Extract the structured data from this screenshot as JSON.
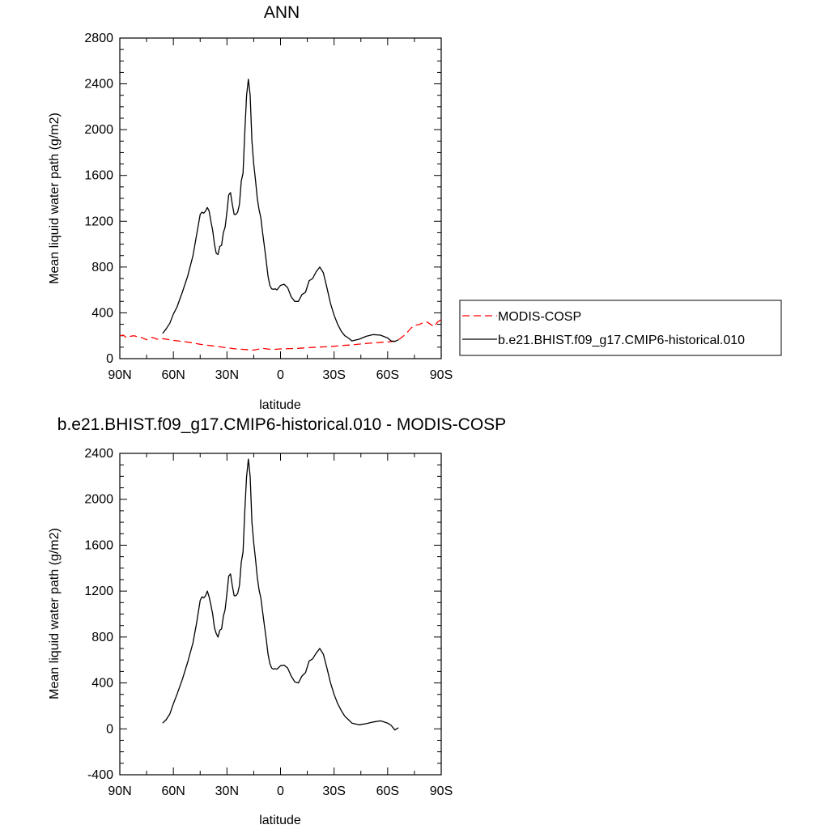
{
  "chart_data": [
    {
      "type": "line",
      "title": "ANN",
      "xlabel": "latitude",
      "ylabel": "Mean liquid water path (g/m2)",
      "xlim": [
        90,
        -90
      ],
      "ylim": [
        0,
        2800
      ],
      "x_ticks": [
        90,
        60,
        30,
        0,
        -30,
        -60,
        -90
      ],
      "x_tick_labels": [
        "90N",
        "60N",
        "30N",
        "0",
        "30S",
        "60S",
        "90S"
      ],
      "y_ticks": [
        0,
        400,
        800,
        1200,
        1600,
        2000,
        2400,
        2800
      ],
      "y_tick_labels": [
        "0",
        "400",
        "800",
        "1200",
        "1600",
        "2000",
        "2400",
        "2800"
      ],
      "grid": false,
      "legend_position": "right",
      "series": [
        {
          "name": "MODIS-COSP",
          "color": "#ff0000",
          "dash": "dashed",
          "x": [
            90,
            88,
            86,
            84,
            82,
            80,
            78,
            75,
            72,
            69,
            66,
            60,
            55,
            50,
            45,
            40,
            35,
            30,
            25,
            20,
            15,
            10,
            5,
            0,
            -5,
            -10,
            -15,
            -20,
            -25,
            -30,
            -35,
            -40,
            -45,
            -50,
            -55,
            -58,
            -61,
            -63,
            -65,
            -67,
            -69,
            -71,
            -73,
            -75,
            -78,
            -80,
            -82,
            -84,
            -86,
            -88,
            -90
          ],
          "y": [
            200,
            205,
            180,
            195,
            200,
            190,
            185,
            165,
            185,
            170,
            175,
            160,
            150,
            140,
            125,
            115,
            105,
            95,
            85,
            80,
            75,
            90,
            80,
            85,
            88,
            90,
            95,
            100,
            103,
            108,
            115,
            120,
            128,
            135,
            140,
            145,
            148,
            150,
            160,
            175,
            200,
            230,
            265,
            290,
            300,
            315,
            320,
            300,
            280,
            320,
            340
          ]
        },
        {
          "name": "b.e21.BHIST.f09_g17.CMIP6-historical.010",
          "color": "#000000",
          "dash": "solid",
          "x": [
            66,
            64,
            62,
            60,
            58,
            55,
            52,
            49,
            47,
            45,
            44,
            43,
            42,
            41,
            40,
            39,
            38,
            37,
            36,
            35,
            34,
            33,
            32,
            31,
            30,
            29,
            28,
            27,
            26,
            25,
            24,
            23,
            22,
            21,
            20,
            19,
            18,
            17,
            16,
            15,
            14,
            13,
            12,
            11,
            10,
            9,
            8,
            7,
            6,
            5,
            4,
            3,
            2,
            0,
            -2,
            -4,
            -6,
            -8,
            -10,
            -12,
            -14,
            -16,
            -18,
            -20,
            -22,
            -24,
            -26,
            -28,
            -30,
            -32,
            -34,
            -36,
            -38,
            -40,
            -44,
            -48,
            -52,
            -56,
            -60,
            -62,
            -64,
            -66
          ],
          "y": [
            220,
            260,
            310,
            390,
            450,
            580,
            720,
            900,
            1080,
            1260,
            1280,
            1270,
            1290,
            1320,
            1290,
            1200,
            1120,
            1000,
            920,
            910,
            980,
            990,
            1100,
            1150,
            1280,
            1430,
            1450,
            1350,
            1260,
            1260,
            1280,
            1350,
            1550,
            1620,
            1980,
            2300,
            2440,
            2300,
            1900,
            1700,
            1560,
            1400,
            1300,
            1230,
            1100,
            980,
            850,
            720,
            640,
            610,
            605,
            610,
            600,
            640,
            650,
            620,
            540,
            500,
            500,
            560,
            580,
            680,
            700,
            760,
            800,
            750,
            620,
            480,
            380,
            300,
            240,
            200,
            180,
            155,
            170,
            195,
            210,
            205,
            180,
            155,
            150,
            165
          ]
        }
      ]
    },
    {
      "type": "line",
      "title": "b.e21.BHIST.f09_g17.CMIP6-historical.010 - MODIS-COSP",
      "xlabel": "latitude",
      "ylabel": "Mean liquid water path (g/m2)",
      "xlim": [
        90,
        -90
      ],
      "ylim": [
        -400,
        2400
      ],
      "x_ticks": [
        90,
        60,
        30,
        0,
        -30,
        -60,
        -90
      ],
      "x_tick_labels": [
        "90N",
        "60N",
        "30N",
        "0",
        "30S",
        "60S",
        "90S"
      ],
      "y_ticks": [
        -400,
        0,
        400,
        800,
        1200,
        1600,
        2000,
        2400
      ],
      "y_tick_labels": [
        "-400",
        "0",
        "400",
        "800",
        "1200",
        "1600",
        "2000",
        "2400"
      ],
      "grid": false,
      "series": [
        {
          "color": "#000000",
          "dash": "solid",
          "x": [
            66,
            64,
            62,
            60,
            58,
            55,
            52,
            49,
            47,
            45,
            44,
            43,
            42,
            41,
            40,
            39,
            38,
            37,
            36,
            35,
            34,
            33,
            32,
            31,
            30,
            29,
            28,
            27,
            26,
            25,
            24,
            23,
            22,
            21,
            20,
            19,
            18,
            17,
            16,
            15,
            14,
            13,
            12,
            11,
            10,
            9,
            8,
            7,
            6,
            5,
            4,
            3,
            2,
            0,
            -2,
            -4,
            -6,
            -8,
            -10,
            -12,
            -14,
            -16,
            -18,
            -20,
            -22,
            -24,
            -26,
            -28,
            -30,
            -32,
            -34,
            -36,
            -38,
            -40,
            -44,
            -48,
            -52,
            -56,
            -58,
            -60,
            -62,
            -64,
            -66
          ],
          "y": [
            50,
            80,
            130,
            220,
            300,
            430,
            580,
            750,
            920,
            1120,
            1150,
            1140,
            1160,
            1200,
            1150,
            1080,
            1000,
            880,
            830,
            800,
            860,
            870,
            980,
            1040,
            1180,
            1330,
            1350,
            1250,
            1160,
            1160,
            1180,
            1250,
            1450,
            1540,
            1900,
            2200,
            2350,
            2200,
            1800,
            1620,
            1480,
            1320,
            1210,
            1140,
            1020,
            900,
            780,
            650,
            570,
            530,
            520,
            525,
            520,
            550,
            555,
            530,
            460,
            410,
            400,
            460,
            490,
            590,
            610,
            660,
            700,
            650,
            530,
            400,
            300,
            220,
            160,
            110,
            80,
            50,
            35,
            45,
            60,
            70,
            60,
            50,
            30,
            -10,
            10
          ]
        }
      ]
    }
  ],
  "legend": {
    "entries": [
      {
        "label": "MODIS-COSP",
        "color": "#ff0000",
        "dash": "dashed"
      },
      {
        "label": "b.e21.BHIST.f09_g17.CMIP6-historical.010",
        "color": "#000000",
        "dash": "solid"
      }
    ]
  }
}
